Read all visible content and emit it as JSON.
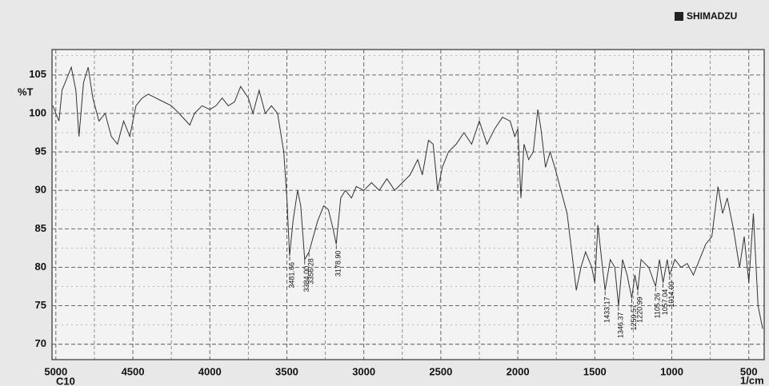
{
  "chart_data": {
    "type": "line",
    "brand": "SHIMADZU",
    "y_label": "%T",
    "x_label": "1/cm",
    "sample": "C10",
    "xlim": [
      5025,
      400
    ],
    "ylim": [
      68,
      108.3
    ],
    "xticks": [
      5000,
      4500,
      4000,
      3500,
      3000,
      2500,
      2000,
      1500,
      1000,
      500
    ],
    "xminorticks": [
      4750,
      4250,
      3750,
      3250,
      2750,
      2250,
      1750,
      1250,
      750
    ],
    "yticks": [
      70,
      75,
      80,
      85,
      90,
      95,
      100,
      105
    ],
    "yminorticks": [
      72.5,
      77.5,
      82.5,
      87.5,
      92.5,
      97.5,
      102.5,
      107.5
    ],
    "grid": true,
    "x": [
      5020,
      4980,
      4960,
      4940,
      4900,
      4870,
      4850,
      4820,
      4790,
      4760,
      4720,
      4680,
      4640,
      4600,
      4560,
      4520,
      4480,
      4440,
      4400,
      4350,
      4300,
      4250,
      4200,
      4130,
      4100,
      4050,
      4000,
      3960,
      3920,
      3880,
      3840,
      3800,
      3750,
      3720,
      3680,
      3640,
      3600,
      3560,
      3520,
      3500,
      3482,
      3460,
      3430,
      3410,
      3384,
      3356,
      3300,
      3260,
      3230,
      3200,
      3179,
      3150,
      3120,
      3080,
      3050,
      3000,
      2950,
      2900,
      2850,
      2800,
      2750,
      2700,
      2650,
      2620,
      2580,
      2550,
      2520,
      2490,
      2450,
      2400,
      2350,
      2300,
      2250,
      2200,
      2150,
      2100,
      2050,
      2020,
      2000,
      1980,
      1960,
      1930,
      1900,
      1870,
      1850,
      1820,
      1790,
      1760,
      1720,
      1680,
      1650,
      1620,
      1590,
      1560,
      1520,
      1500,
      1480,
      1450,
      1433,
      1400,
      1370,
      1346,
      1320,
      1290,
      1260,
      1240,
      1221,
      1200,
      1150,
      1105,
      1080,
      1057,
      1030,
      1014,
      980,
      940,
      900,
      860,
      820,
      780,
      740,
      700,
      670,
      640,
      600,
      560,
      530,
      500,
      470,
      440,
      410
    ],
    "series": [
      {
        "name": "C10",
        "color": "#333333",
        "values": [
          101,
          99,
          103,
          104,
          106,
          103,
          97,
          104,
          106,
          102,
          99,
          100,
          97,
          96,
          99,
          97,
          101,
          102,
          102.5,
          102,
          101.5,
          101,
          100,
          98.5,
          100,
          101,
          100.5,
          101,
          102,
          101,
          101.5,
          103.5,
          102,
          100,
          103,
          100,
          101,
          100,
          95,
          89,
          81.5,
          86,
          90,
          88,
          81,
          82,
          86,
          88,
          87.5,
          85,
          83,
          89,
          90,
          89,
          90.5,
          90,
          91,
          90,
          91.5,
          90,
          91,
          92,
          94,
          92,
          96.5,
          96,
          90,
          93,
          95,
          96,
          97.5,
          96,
          99,
          96,
          98,
          99.5,
          99,
          97,
          98,
          89,
          96,
          94,
          95,
          100.5,
          98,
          93,
          95,
          93,
          90,
          87,
          82,
          77,
          80,
          82,
          80,
          78,
          85.5,
          80,
          77,
          81,
          80,
          75,
          81,
          79,
          76,
          79,
          77,
          81,
          80,
          77.5,
          81,
          78,
          81,
          79,
          81,
          80,
          80.5,
          79,
          81,
          83,
          84,
          90.5,
          87,
          89,
          85,
          80,
          84,
          78,
          87,
          75,
          72
        ]
      }
    ],
    "peaks": [
      {
        "x": 3481.66,
        "y": 81.5,
        "label": "3481.66"
      },
      {
        "x": 3384.0,
        "y": 81,
        "label": "3384.00"
      },
      {
        "x": 3356.28,
        "y": 82,
        "label": "3356.28"
      },
      {
        "x": 3178.9,
        "y": 83,
        "label": "3178.90"
      },
      {
        "x": 1433.17,
        "y": 77,
        "label": "1433.17"
      },
      {
        "x": 1346.37,
        "y": 75,
        "label": "1346.37"
      },
      {
        "x": 1259.57,
        "y": 76,
        "label": "1259.57"
      },
      {
        "x": 1220.99,
        "y": 77,
        "label": "1220.99"
      },
      {
        "x": 1105.26,
        "y": 77.5,
        "label": "1105.26"
      },
      {
        "x": 1057.04,
        "y": 78,
        "label": "1057.04"
      },
      {
        "x": 1014.0,
        "y": 79,
        "label": "1014.00"
      }
    ]
  }
}
